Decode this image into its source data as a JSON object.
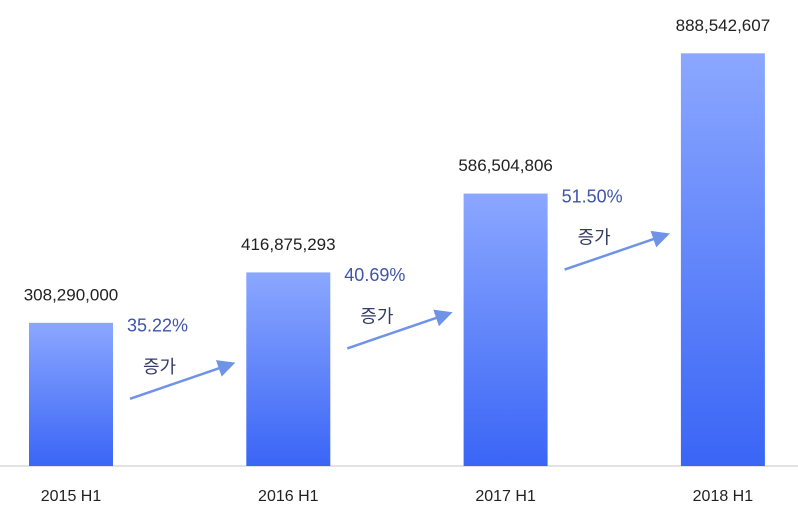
{
  "chart_data": {
    "type": "bar",
    "categories": [
      "2015 H1",
      "2016 H1",
      "2017 H1",
      "2018 H1"
    ],
    "values": [
      308290000,
      416875293,
      586504806,
      888542607
    ],
    "value_labels": [
      "308,290,000",
      "416,875,293",
      "586,504,806",
      "888,542,607"
    ],
    "colors": [
      "#8ba7ff",
      "#3a65f6"
    ],
    "ylim": [
      0,
      900000000
    ],
    "growth": {
      "values": [
        35.22,
        40.69,
        51.5
      ],
      "value_labels": [
        "35.22%",
        "40.69%",
        "51.50%"
      ],
      "label": "증가",
      "color": "#6f93e6"
    }
  }
}
